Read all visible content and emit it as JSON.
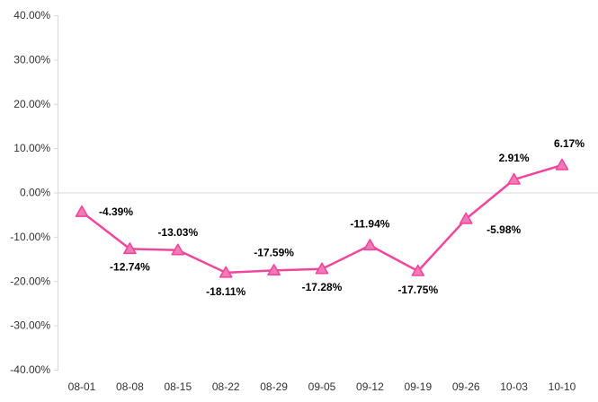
{
  "chart_data": {
    "type": "line",
    "categories": [
      "08-01",
      "08-08",
      "08-15",
      "08-22",
      "08-29",
      "09-05",
      "09-12",
      "09-19",
      "09-26",
      "10-03",
      "10-10"
    ],
    "values": [
      -4.39,
      -12.74,
      -13.03,
      -18.11,
      -17.59,
      -17.28,
      -11.94,
      -17.75,
      -5.98,
      2.91,
      6.17
    ],
    "data_labels": [
      "-4.39%",
      "-12.74%",
      "-13.03%",
      "-18.11%",
      "-17.59%",
      "-17.28%",
      "-11.94%",
      "-17.75%",
      "-5.98%",
      "2.91%",
      "6.17%"
    ],
    "y_ticks": [
      40,
      30,
      20,
      10,
      0,
      -10,
      -20,
      -30,
      -40
    ],
    "y_tick_labels": [
      "40.00%",
      "30.00%",
      "20.00%",
      "10.00%",
      "0.00%",
      "-10.00%",
      "-20.00%",
      "-30.00%",
      "-40.00%"
    ],
    "ylim": [
      -40,
      40
    ],
    "title": "",
    "xlabel": "",
    "ylabel": "",
    "grid": false,
    "marker": "triangle",
    "colors": {
      "line": "#F0479D",
      "marker_fill": "#F27BB6",
      "axis": "#D9D9D9"
    }
  }
}
